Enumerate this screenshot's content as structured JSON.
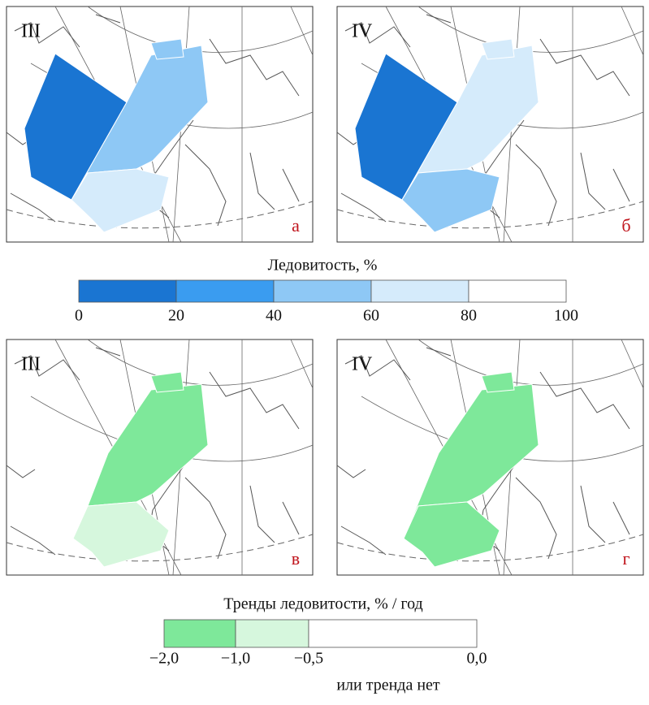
{
  "panels": [
    {
      "season": "III",
      "letter": "а"
    },
    {
      "season": "IV",
      "letter": "б"
    },
    {
      "season": "III",
      "letter": "в"
    },
    {
      "season": "IV",
      "letter": "г"
    }
  ],
  "legends": [
    {
      "title": "Ледовитость, %",
      "colors": [
        "#1a75d2",
        "#3a9cf0",
        "#8ec8f5",
        "#d5ebfb",
        "#ffffff"
      ],
      "ticks": [
        0,
        20,
        40,
        60,
        80,
        100
      ]
    },
    {
      "title": "Тренды ледовитости, % / год",
      "colors": [
        "#7ee89a",
        "#d6f7dd",
        "#ffffff"
      ],
      "ticks": [
        {
          "value": -2,
          "label": "−2,0"
        },
        {
          "value": -1,
          "label": "−1,0"
        },
        {
          "value": -0.5,
          "label": "−0,5"
        },
        {
          "value": 0,
          "label": "0,0"
        }
      ],
      "note": "или тренда нет"
    }
  ]
}
